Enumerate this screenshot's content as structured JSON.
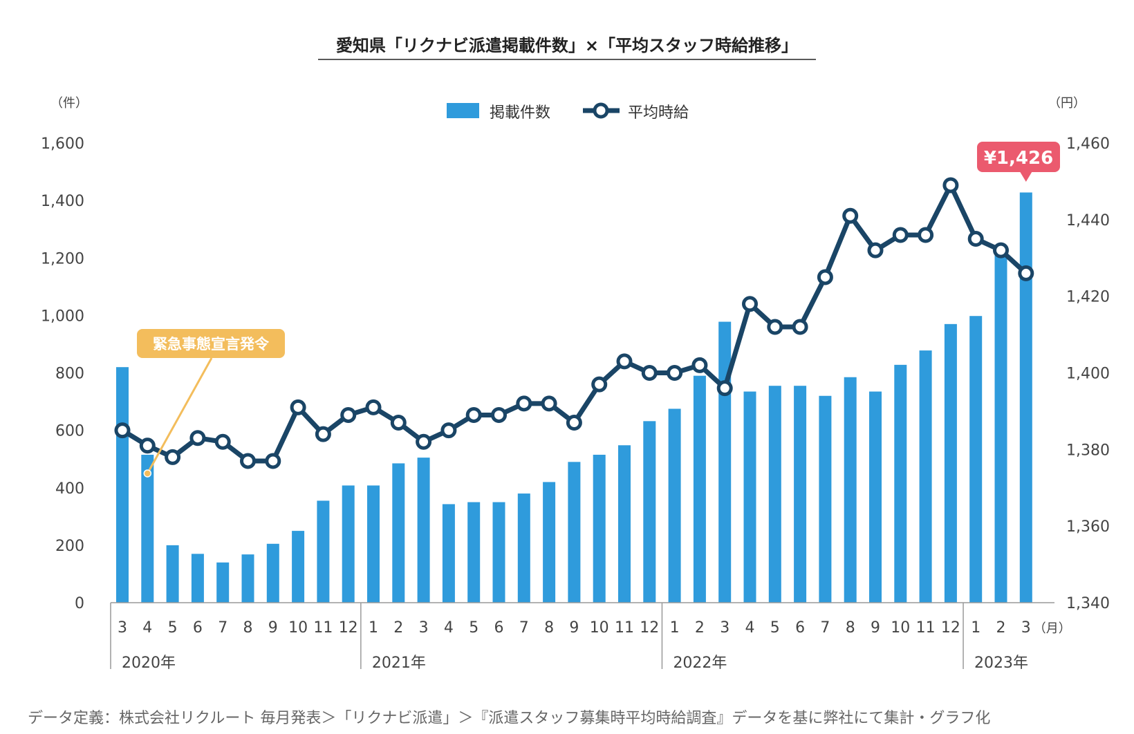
{
  "colors": {
    "bar": "#2f9bdc",
    "line": "#1a4566",
    "callout_price": "#eb5a6e",
    "callout_event": "#f3bd5c",
    "axis": "#999999"
  },
  "chart_data": {
    "type": "bar+line",
    "title": "愛知県「リクナビ派遣掲載件数」×「平均スタッフ時給推移」",
    "legend": {
      "bar_label": "掲載件数",
      "line_label": "平均時給",
      "placement": "top-center"
    },
    "left_axis": {
      "unit": "（件）",
      "min": 0,
      "max": 1600,
      "ticks": [
        0,
        200,
        400,
        600,
        800,
        1000,
        1200,
        1400,
        1600
      ],
      "tick_labels": [
        "0",
        "200",
        "400",
        "600",
        "800",
        "1,000",
        "1,200",
        "1,400",
        "1,600"
      ]
    },
    "right_axis": {
      "unit": "（円）",
      "min": 1340,
      "max": 1460,
      "ticks": [
        1340,
        1360,
        1380,
        1400,
        1420,
        1440,
        1460
      ],
      "tick_labels": [
        "1,340",
        "1,360",
        "1,380",
        "1,400",
        "1,420",
        "1,440",
        "1,460"
      ]
    },
    "x_unit": "（月）",
    "months": [
      "3",
      "4",
      "5",
      "6",
      "7",
      "8",
      "9",
      "10",
      "11",
      "12",
      "1",
      "2",
      "3",
      "4",
      "5",
      "6",
      "7",
      "8",
      "9",
      "10",
      "11",
      "12",
      "1",
      "2",
      "3",
      "4",
      "5",
      "6",
      "7",
      "8",
      "9",
      "10",
      "11",
      "12",
      "1",
      "2",
      "3"
    ],
    "years": [
      {
        "label": "2020年",
        "start_index": 0
      },
      {
        "label": "2021年",
        "start_index": 10
      },
      {
        "label": "2022年",
        "start_index": 22
      },
      {
        "label": "2023年",
        "start_index": 34
      }
    ],
    "series": [
      {
        "name": "掲載件数",
        "type": "bar",
        "axis": "left",
        "values": [
          820,
          515,
          200,
          170,
          140,
          168,
          205,
          250,
          355,
          408,
          408,
          485,
          505,
          343,
          350,
          350,
          380,
          420,
          490,
          515,
          548,
          632,
          675,
          790,
          978,
          735,
          755,
          755,
          720,
          785,
          735,
          828,
          878,
          970,
          998,
          1230,
          1428
        ]
      },
      {
        "name": "平均時給",
        "type": "line",
        "axis": "right",
        "values": [
          1385,
          1381,
          1378,
          1383,
          1382,
          1377,
          1377,
          1391,
          1384,
          1389,
          1391,
          1387,
          1382,
          1385,
          1389,
          1389,
          1392,
          1392,
          1387,
          1397,
          1403,
          1400,
          1400,
          1402,
          1396,
          1418,
          1412,
          1412,
          1425,
          1441,
          1432,
          1436,
          1436,
          1449,
          1435,
          1432,
          1426
        ]
      }
    ],
    "annotations": [
      {
        "text": "緊急事態宣言発令",
        "index": 1,
        "value": 450,
        "axis": "left"
      },
      {
        "text": "¥1,426",
        "index": 36,
        "series": "掲載件数"
      }
    ]
  },
  "footer": "データ定義：株式会社リクルート 毎月発表＞「リクナビ派遣」＞『派遣スタッフ募集時平均時給調査』データを基に弊社にて集計・グラフ化"
}
